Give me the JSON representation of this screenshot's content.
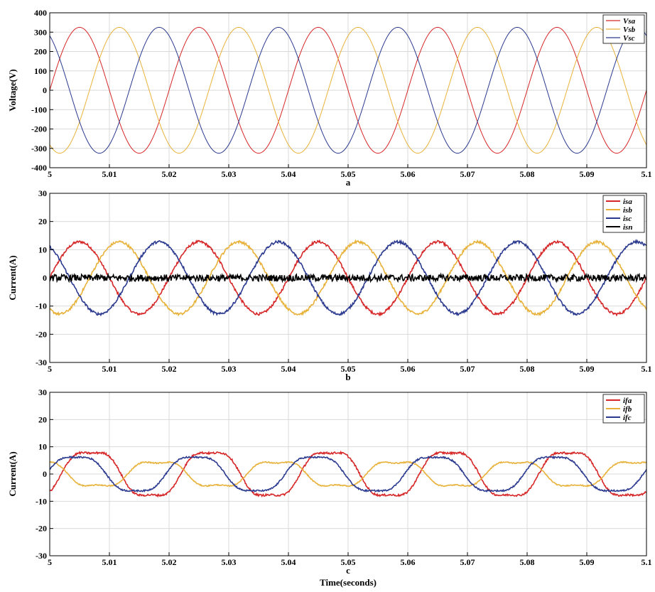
{
  "colors": {
    "red": "#d62728",
    "yellow": "#e8b23a",
    "blue": "#2b3a8f",
    "black": "#000000",
    "grid": "#d9d9d9"
  },
  "chart_data": [
    {
      "type": "line",
      "panel_label": "a",
      "ylabel": "Voltage(V)",
      "xlabel": "",
      "xlim": [
        5,
        5.1
      ],
      "ylim": [
        -400,
        400
      ],
      "xticks": [
        5,
        5.01,
        5.02,
        5.03,
        5.04,
        5.05,
        5.06,
        5.07,
        5.08,
        5.09,
        5.1
      ],
      "xtick_labels": [
        "5",
        "5.01",
        "5.02",
        "5.03",
        "5.04",
        "5.05",
        "5.06",
        "5.07",
        "5.08",
        "5.09",
        "5.1"
      ],
      "yticks": [
        -400,
        -300,
        -200,
        -100,
        0,
        100,
        200,
        300,
        400
      ],
      "ytick_labels": [
        "-400",
        "-300",
        "-200",
        "-100",
        "0",
        "100",
        "200",
        "300",
        "400"
      ],
      "grid": true,
      "legend_position": "top-right",
      "frequency_hz": 50,
      "series": [
        {
          "name": "Vsa",
          "color": "#d62728",
          "amplitude": 325,
          "phase_deg": 0,
          "thick": false
        },
        {
          "name": "Vsb",
          "color": "#e8b23a",
          "amplitude": 325,
          "phase_deg": -120,
          "thick": false
        },
        {
          "name": "Vsc",
          "color": "#2b3a8f",
          "amplitude": 325,
          "phase_deg": 120,
          "thick": false
        }
      ]
    },
    {
      "type": "line",
      "panel_label": "b",
      "ylabel": "Current(A)",
      "xlabel": "",
      "xlim": [
        5,
        5.1
      ],
      "ylim": [
        -30,
        30
      ],
      "xticks": [
        5,
        5.01,
        5.02,
        5.03,
        5.04,
        5.05,
        5.06,
        5.07,
        5.08,
        5.09,
        5.1
      ],
      "xtick_labels": [
        "5",
        "5.01",
        "5.02",
        "5.03",
        "5.04",
        "5.05",
        "5.06",
        "5.07",
        "5.08",
        "5.09",
        "5.1"
      ],
      "yticks": [
        -30,
        -20,
        -10,
        0,
        10,
        20,
        30
      ],
      "ytick_labels": [
        "-30",
        "-20",
        "-10",
        "0",
        "10",
        "20",
        "30"
      ],
      "grid": true,
      "legend_position": "top-right",
      "frequency_hz": 50,
      "series": [
        {
          "name": "isa",
          "color": "#d62728",
          "amplitude": 12.8,
          "phase_deg": 0,
          "thick": true
        },
        {
          "name": "isb",
          "color": "#e8b23a",
          "amplitude": 12.8,
          "phase_deg": -120,
          "thick": true
        },
        {
          "name": "isc",
          "color": "#2b3a8f",
          "amplitude": 12.8,
          "phase_deg": 120,
          "thick": true
        },
        {
          "name": "isn",
          "color": "#000000",
          "amplitude": 0,
          "phase_deg": 0,
          "noise": 1.2,
          "thick": true
        }
      ]
    },
    {
      "type": "line",
      "panel_label": "c",
      "ylabel": "Current(A)",
      "xlabel": "Time(seconds)",
      "xlim": [
        5,
        5.1
      ],
      "ylim": [
        -30,
        30
      ],
      "xticks": [
        5,
        5.01,
        5.02,
        5.03,
        5.04,
        5.05,
        5.06,
        5.07,
        5.08,
        5.09,
        5.1
      ],
      "xtick_labels": [
        "5",
        "5.01",
        "5.02",
        "5.03",
        "5.04",
        "5.05",
        "5.06",
        "5.07",
        "5.08",
        "5.09",
        "5.1"
      ],
      "yticks": [
        -30,
        -20,
        -10,
        0,
        10,
        20,
        30
      ],
      "ytick_labels": [
        "-30",
        "-20",
        "-10",
        "0",
        "10",
        "20",
        "30"
      ],
      "grid": true,
      "legend_position": "top-right",
      "frequency_hz": 50,
      "series": [
        {
          "name": "ifa",
          "color": "#d62728",
          "amplitude": 9,
          "phase_deg": -35,
          "distort": 0.3,
          "thick": true
        },
        {
          "name": "ifb",
          "color": "#e8b23a",
          "amplitude": 5,
          "phase_deg": 125,
          "distort": 0.4,
          "thick": true
        },
        {
          "name": "ifc",
          "color": "#2b3a8f",
          "amplitude": 7,
          "phase_deg": 10,
          "distort": 0.25,
          "thick": true
        }
      ]
    }
  ]
}
